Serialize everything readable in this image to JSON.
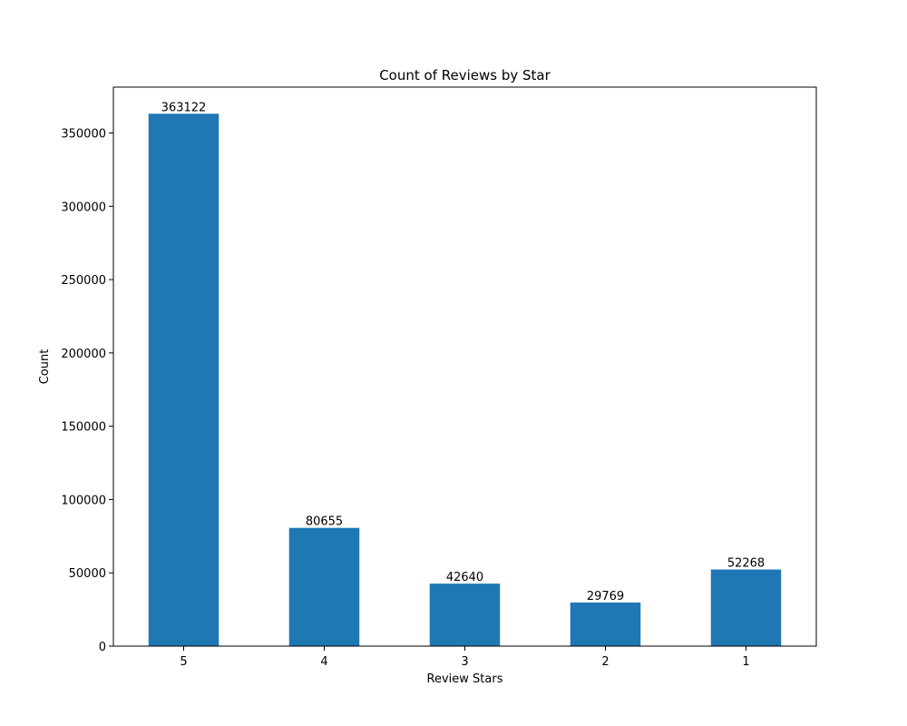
{
  "chart_data": {
    "type": "bar",
    "title": "Count of Reviews by Star",
    "xlabel": "Review Stars",
    "ylabel": "Count",
    "categories": [
      "5",
      "4",
      "3",
      "2",
      "1"
    ],
    "values": [
      363122,
      80655,
      42640,
      29769,
      52268
    ],
    "data_labels": [
      "363122",
      "80655",
      "42640",
      "29769",
      "52268"
    ],
    "ylim": [
      0,
      381278
    ],
    "yticks": [
      0,
      50000,
      100000,
      150000,
      200000,
      250000,
      300000,
      350000
    ],
    "ytick_labels": [
      "0",
      "50000",
      "100000",
      "150000",
      "200000",
      "250000",
      "300000",
      "350000"
    ],
    "bar_color": "#1f77b4",
    "grid": false,
    "legend": "none"
  }
}
